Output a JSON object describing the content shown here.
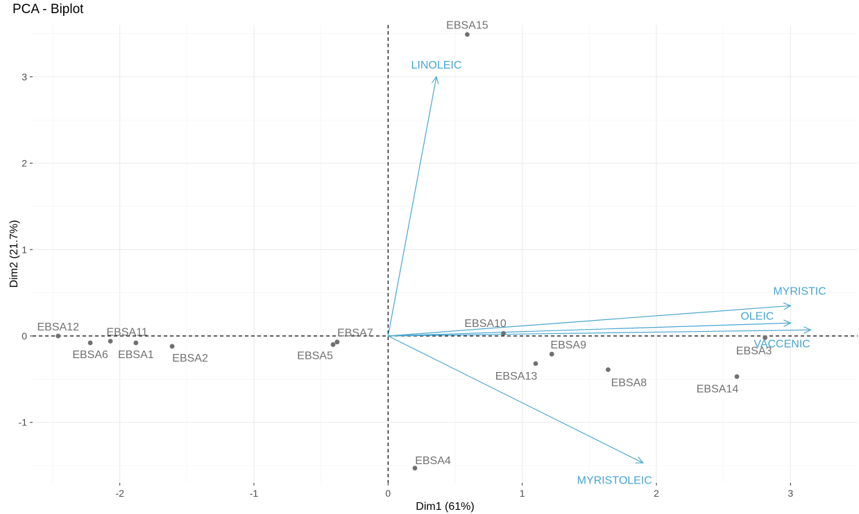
{
  "chart_data": {
    "type": "scatter",
    "title": "PCA - Biplot",
    "xlabel": "Dim1 (61%)",
    "ylabel": "Dim2 (21.7%)",
    "xlim": [
      -2.65,
      3.5
    ],
    "ylim": [
      -1.7,
      3.6
    ],
    "xticks": [
      -2,
      -1,
      0,
      1,
      2,
      3
    ],
    "yticks": [
      -1,
      0,
      1,
      2,
      3
    ],
    "xtick_labels": [
      "-2",
      "-1",
      "0",
      "1",
      "2",
      "3"
    ],
    "ytick_labels": [
      "-1",
      "0",
      "1",
      "2",
      "3"
    ],
    "grid": true,
    "colors": {
      "points": "#707070",
      "variables": "#49a6cf",
      "grid": "#ebebeb"
    },
    "individuals": [
      {
        "name": "EBSA12",
        "x": -2.46,
        "y": 0.0
      },
      {
        "name": "EBSA6",
        "x": -2.22,
        "y": -0.08
      },
      {
        "name": "EBSA11",
        "x": -2.07,
        "y": -0.06
      },
      {
        "name": "EBSA1",
        "x": -1.88,
        "y": -0.08
      },
      {
        "name": "EBSA2",
        "x": -1.61,
        "y": -0.12
      },
      {
        "name": "EBSA5",
        "x": -0.41,
        "y": -0.1
      },
      {
        "name": "EBSA7",
        "x": -0.38,
        "y": -0.07
      },
      {
        "name": "EBSA15",
        "x": 0.59,
        "y": 3.49
      },
      {
        "name": "EBSA10",
        "x": 0.86,
        "y": 0.03
      },
      {
        "name": "EBSA13",
        "x": 1.1,
        "y": -0.32
      },
      {
        "name": "EBSA9",
        "x": 1.22,
        "y": -0.21
      },
      {
        "name": "EBSA8",
        "x": 1.64,
        "y": -0.39
      },
      {
        "name": "EBSA14",
        "x": 2.6,
        "y": -0.47
      },
      {
        "name": "EBSA3",
        "x": 2.81,
        "y": -0.02
      },
      {
        "name": "EBSA4",
        "x": 0.2,
        "y": -1.53
      }
    ],
    "variables": [
      {
        "name": "LINOLEIC",
        "x": 0.36,
        "y": 3.0
      },
      {
        "name": "MYRISTIC",
        "x": 3.0,
        "y": 0.35
      },
      {
        "name": "OLEIC",
        "x": 3.0,
        "y": 0.15
      },
      {
        "name": "VACCENIC",
        "x": 3.15,
        "y": 0.07
      },
      {
        "name": "MYRISTOLEIC",
        "x": 1.9,
        "y": -1.47
      }
    ]
  }
}
